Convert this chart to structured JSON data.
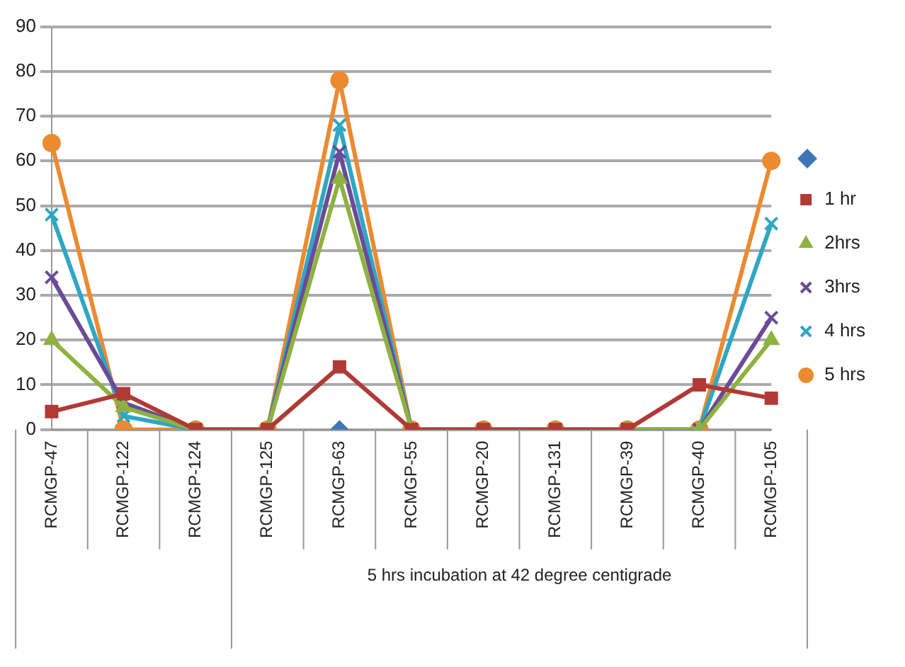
{
  "chart_data": {
    "type": "line",
    "xlabel": "5 hrs incubation at 42 degree centigrade",
    "categories": [
      "RCMGP-47",
      "RCMGP-122",
      "RCMGP-124",
      "RCMGP-125",
      "RCMGP-63",
      "RCMGP-55",
      "RCMGP-20",
      "RCMGP-131",
      "RCMGP-39",
      "RCMGP-40",
      "RCMGP-105"
    ],
    "series": [
      {
        "color": "#3f76b8",
        "marker": "diamond",
        "values": [
          null,
          null,
          null,
          null,
          0,
          null,
          null,
          null,
          null,
          null,
          null
        ]
      },
      {
        "name": "1 hr",
        "color": "#b03a36",
        "marker": "square",
        "values": [
          4,
          8,
          0,
          0,
          14,
          0,
          0,
          0,
          0,
          10,
          7
        ]
      },
      {
        "name": "2hrs",
        "color": "#8db23f",
        "marker": "triangle",
        "values": [
          20,
          5,
          0,
          0,
          56,
          0,
          0,
          0,
          0,
          0,
          20
        ]
      },
      {
        "name": "3hrs",
        "color": "#6a4b96",
        "marker": "cross",
        "values": [
          34,
          6,
          0,
          0,
          62,
          0,
          0,
          0,
          0,
          0,
          25
        ]
      },
      {
        "name": "4 hrs",
        "color": "#2fa6c4",
        "marker": "cross",
        "values": [
          48,
          3,
          0,
          0,
          68,
          0,
          0,
          0,
          0,
          0,
          46
        ]
      },
      {
        "name": "5 hrs",
        "color": "#ec8a2f",
        "marker": "circle",
        "values": [
          64,
          0,
          0,
          0,
          78,
          0,
          0,
          0,
          0,
          0,
          60
        ]
      }
    ],
    "ylim": [
      0,
      90
    ],
    "yticks": [
      0,
      10,
      20,
      30,
      40,
      50,
      60,
      70,
      80,
      90
    ],
    "grid": "y",
    "legend": "right"
  }
}
